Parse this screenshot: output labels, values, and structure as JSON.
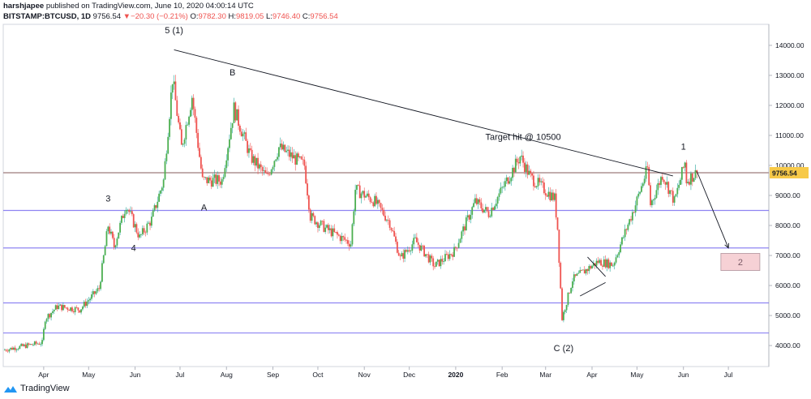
{
  "header": {
    "author": "harshjapee",
    "published": "published on TradingView.com, June 10, 2020 04:00:14 UTC",
    "symbol": "BITSTAMP:BTCUSD, 1D",
    "last": "9756.54",
    "change_arrow": "▼",
    "change": "−20.30 (−0.21%)",
    "o_label": "O:",
    "o_val": "9782.30",
    "h_label": "H:",
    "h_val": "9819.05",
    "l_label": "L:",
    "l_val": "9746.40",
    "c_label": "C:",
    "c_val": "9756.54"
  },
  "footer": {
    "brand": "TradingView",
    "logo_icon": "tradingview-logo-icon"
  },
  "colors": {
    "up": "#26a69a",
    "up_fill": "#4caf50",
    "down": "#ef5350",
    "hline": "#7b6ff0",
    "price_line": "#a08080",
    "box": "#f5c6cb"
  },
  "chart_data": {
    "type": "candlestick",
    "title": "",
    "xlabel": "",
    "ylabel": "",
    "ylim": [
      3300,
      14700
    ],
    "y_ticks": [
      4000,
      5000,
      6000,
      7000,
      8000,
      9000,
      10000,
      11000,
      12000,
      13000,
      14000
    ],
    "y_tick_labels": [
      "4000.00",
      "5000.00",
      "6000.00",
      "7000.00",
      "8000.00",
      "9000.00",
      "10000.00",
      "11000.00",
      "12000.00",
      "13000.00",
      "14000.00"
    ],
    "x_axis": {
      "start": "2019-03-05",
      "end": "2020-07-28",
      "months": [
        {
          "label": "Apr",
          "date": "2019-04-01"
        },
        {
          "label": "May",
          "date": "2019-05-01"
        },
        {
          "label": "Jun",
          "date": "2019-06-01"
        },
        {
          "label": "Jul",
          "date": "2019-07-01"
        },
        {
          "label": "Aug",
          "date": "2019-08-01"
        },
        {
          "label": "Sep",
          "date": "2019-09-01"
        },
        {
          "label": "Oct",
          "date": "2019-10-01"
        },
        {
          "label": "Nov",
          "date": "2019-11-01"
        },
        {
          "label": "Dec",
          "date": "2019-12-01"
        },
        {
          "label": "2020",
          "date": "2020-01-01"
        },
        {
          "label": "Feb",
          "date": "2020-02-01"
        },
        {
          "label": "Mar",
          "date": "2020-03-01"
        },
        {
          "label": "Apr",
          "date": "2020-04-01"
        },
        {
          "label": "May",
          "date": "2020-05-01"
        },
        {
          "label": "Jun",
          "date": "2020-06-01"
        },
        {
          "label": "Jul",
          "date": "2020-07-01"
        }
      ]
    },
    "anchor_closes": [
      {
        "date": "2019-03-05",
        "close": 3850
      },
      {
        "date": "2019-03-31",
        "close": 4100
      },
      {
        "date": "2019-04-02",
        "close": 4900
      },
      {
        "date": "2019-04-10",
        "close": 5300
      },
      {
        "date": "2019-04-25",
        "close": 5200
      },
      {
        "date": "2019-05-08",
        "close": 5900
      },
      {
        "date": "2019-05-14",
        "close": 8000
      },
      {
        "date": "2019-05-18",
        "close": 7300
      },
      {
        "date": "2019-05-26",
        "close": 8700
      },
      {
        "date": "2019-06-04",
        "close": 7600
      },
      {
        "date": "2019-06-12",
        "close": 8200
      },
      {
        "date": "2019-06-20",
        "close": 9500
      },
      {
        "date": "2019-06-26",
        "close": 12900
      },
      {
        "date": "2019-07-02",
        "close": 10600
      },
      {
        "date": "2019-07-09",
        "close": 12300
      },
      {
        "date": "2019-07-16",
        "close": 9500
      },
      {
        "date": "2019-07-29",
        "close": 9500
      },
      {
        "date": "2019-08-06",
        "close": 11900
      },
      {
        "date": "2019-08-17",
        "close": 10300
      },
      {
        "date": "2019-08-28",
        "close": 9600
      },
      {
        "date": "2019-09-05",
        "close": 10600
      },
      {
        "date": "2019-09-22",
        "close": 10000
      },
      {
        "date": "2019-09-26",
        "close": 8300
      },
      {
        "date": "2019-10-06",
        "close": 7900
      },
      {
        "date": "2019-10-23",
        "close": 7400
      },
      {
        "date": "2019-10-26",
        "close": 9200
      },
      {
        "date": "2019-11-08",
        "close": 8800
      },
      {
        "date": "2019-11-18",
        "close": 8100
      },
      {
        "date": "2019-11-25",
        "close": 6900
      },
      {
        "date": "2019-12-05",
        "close": 7500
      },
      {
        "date": "2019-12-18",
        "close": 6650
      },
      {
        "date": "2019-12-31",
        "close": 7150
      },
      {
        "date": "2020-01-14",
        "close": 8800
      },
      {
        "date": "2020-01-23",
        "close": 8400
      },
      {
        "date": "2020-02-13",
        "close": 10300
      },
      {
        "date": "2020-02-20",
        "close": 9600
      },
      {
        "date": "2020-03-07",
        "close": 8900
      },
      {
        "date": "2020-03-09",
        "close": 7900
      },
      {
        "date": "2020-03-12",
        "close": 4900
      },
      {
        "date": "2020-03-19",
        "close": 6200
      },
      {
        "date": "2020-04-05",
        "close": 6800
      },
      {
        "date": "2020-04-15",
        "close": 6700
      },
      {
        "date": "2020-04-30",
        "close": 8700
      },
      {
        "date": "2020-05-08",
        "close": 9900
      },
      {
        "date": "2020-05-10",
        "close": 8700
      },
      {
        "date": "2020-05-18",
        "close": 9700
      },
      {
        "date": "2020-05-26",
        "close": 8800
      },
      {
        "date": "2020-06-02",
        "close": 10100
      },
      {
        "date": "2020-06-03",
        "close": 9500
      },
      {
        "date": "2020-06-10",
        "close": 9756.54
      }
    ],
    "horizontal_levels": [
      {
        "price": 9756.54,
        "role": "last-price"
      },
      {
        "price": 8500
      },
      {
        "price": 7250
      },
      {
        "price": 5420
      },
      {
        "price": 4420
      }
    ],
    "last_price_label": "9756.54",
    "trendline": {
      "from": {
        "date": "2019-06-27",
        "price": 13850
      },
      "to": {
        "date": "2020-05-25",
        "price": 9650
      }
    },
    "projection_line": {
      "from": {
        "date": "2020-06-10",
        "price": 9800
      },
      "to": {
        "date": "2020-07-01",
        "price": 7250
      }
    },
    "wedge": [
      {
        "from": {
          "date": "2020-03-29",
          "price": 6950
        },
        "to": {
          "date": "2020-04-10",
          "price": 6300
        }
      },
      {
        "from": {
          "date": "2020-03-24",
          "price": 5650
        },
        "to": {
          "date": "2020-04-10",
          "price": 6100
        }
      }
    ],
    "target_box": {
      "from": {
        "date": "2020-06-26",
        "price": 7070
      },
      "to": {
        "date": "2020-07-22",
        "price": 6500
      },
      "label": "2"
    },
    "annotations": [
      {
        "text": "5 (1)",
        "date": "2019-06-27",
        "price": 14400
      },
      {
        "text": "B",
        "date": "2019-08-05",
        "price": 13000
      },
      {
        "text": "A",
        "date": "2019-07-17",
        "price": 8500
      },
      {
        "text": "3",
        "date": "2019-05-14",
        "price": 8800
      },
      {
        "text": "4",
        "date": "2019-05-31",
        "price": 7150
      },
      {
        "text": "Target hit @ 10500",
        "date": "2020-02-15",
        "price": 10850
      },
      {
        "text": "1",
        "date": "2020-06-01",
        "price": 10520
      },
      {
        "text": "C (2)",
        "date": "2020-03-13",
        "price": 3820
      }
    ]
  }
}
